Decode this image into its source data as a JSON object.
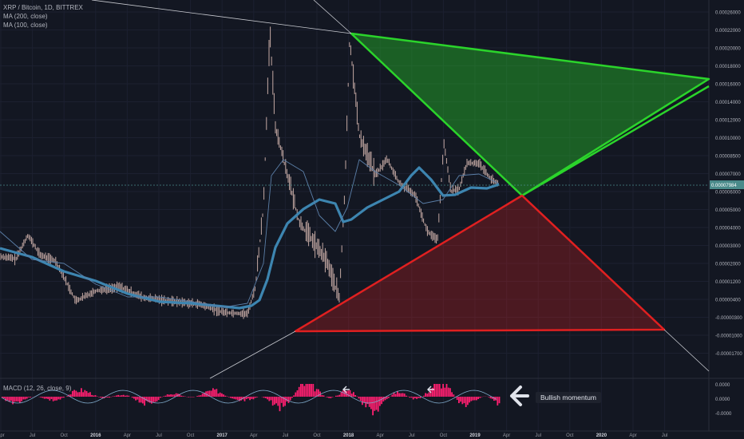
{
  "legend": {
    "symbol": "XRP / Bitcoin, 1D, BITTREX",
    "ma200": "MA (200, close)",
    "ma100": "MA (100, close)"
  },
  "macd_label": "MACD (12, 26, close, 9)",
  "callout": "Bullish momentum",
  "price_label": "0.00007984",
  "colors": {
    "background": "#131722",
    "candle": "#c4a9a4",
    "ma200": "#3d85b0",
    "ma100": "#5b7fa8",
    "bull_triangle": "#2bd42b",
    "bear_triangle": "#e02020",
    "macd_hist": "#ff1f70"
  },
  "chart_data": {
    "type": "line",
    "title": "XRP / Bitcoin, 1D, BITTREX",
    "y_ticks": [
      "0.00026000",
      "0.00022000",
      "0.00020000",
      "0.00018000",
      "0.00016000",
      "0.00014000",
      "0.00012000",
      "0.00010000",
      "0.00008500",
      "0.00007000",
      "0.00006000",
      "0.00005000",
      "0.00004000",
      "0.00003000",
      "0.00002000",
      "0.00001200",
      "0.00000400",
      "-0.00000300",
      "-0.00001000",
      "-0.00001700"
    ],
    "x_ticks": [
      "Apr",
      "Jul",
      "Oct",
      "2016",
      "Apr",
      "Jul",
      "Oct",
      "2017",
      "Apr",
      "Jul",
      "Oct",
      "2018",
      "Apr",
      "Jul",
      "Oct",
      "2019",
      "Apr",
      "Jul",
      "Oct",
      "2020",
      "Apr",
      "Jul"
    ],
    "macd_ticks": [
      "0.0000",
      "0.0000",
      "-0.0000"
    ],
    "current_price": 7.984e-05,
    "series": [
      {
        "name": "MA (200, close)"
      },
      {
        "name": "MA (100, close)"
      }
    ]
  }
}
